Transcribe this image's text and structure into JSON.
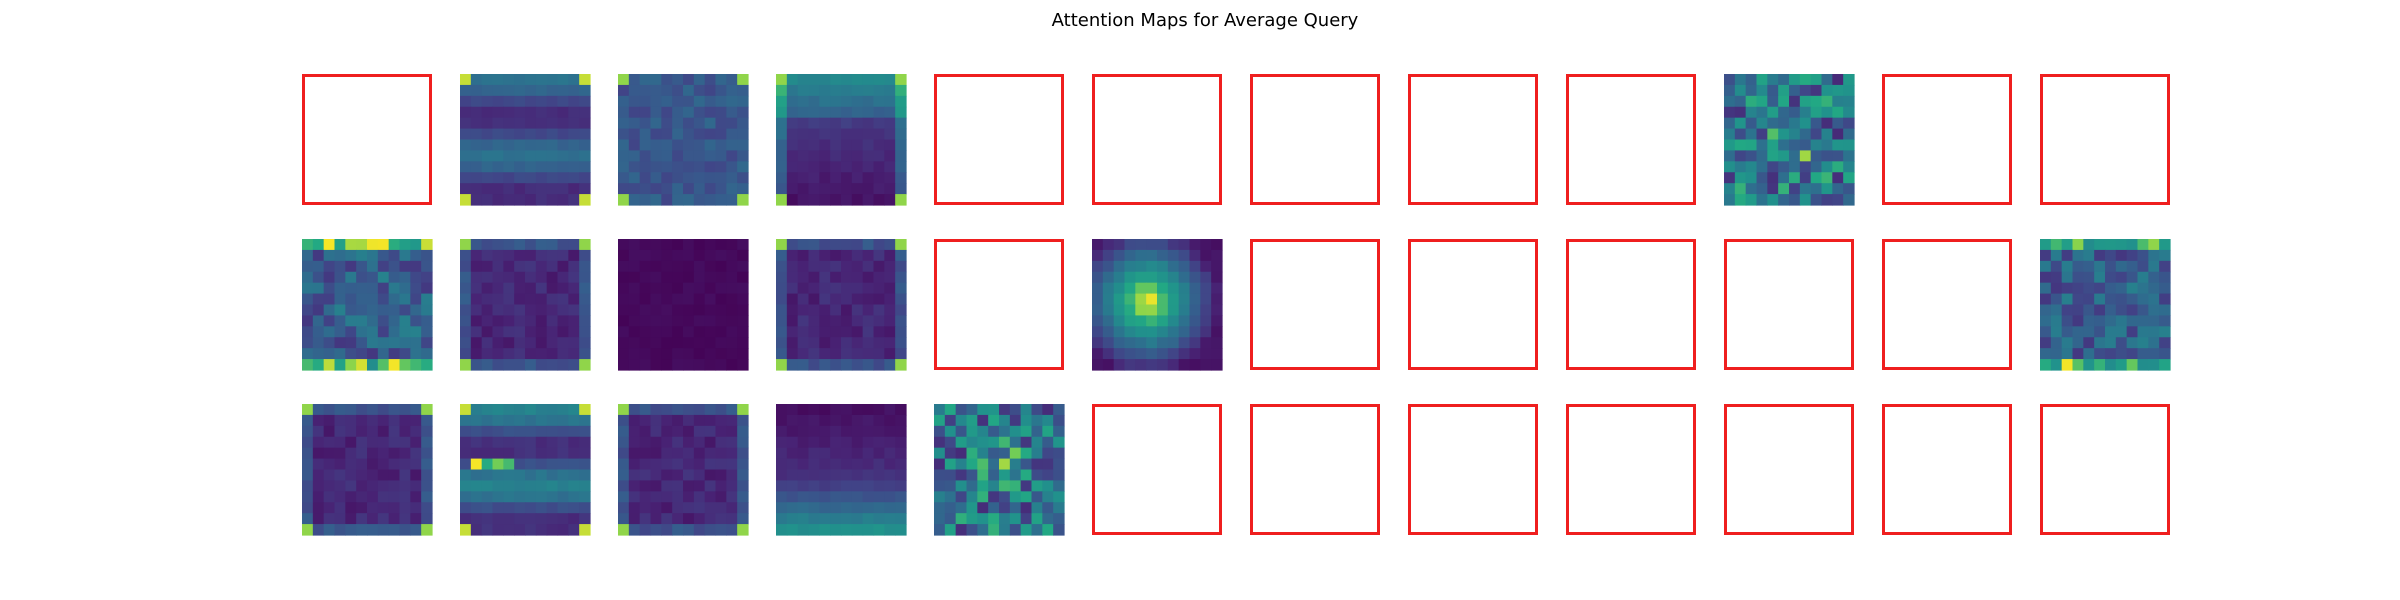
{
  "chart_data": {
    "type": "heatmap",
    "title": "Attention Maps for Average Query",
    "rows": 3,
    "cols": 12,
    "colormap": "viridis",
    "grid": false,
    "axes_visible": false,
    "map_resolution": "12x12",
    "empty_panel_style": {
      "fill": "#ffffff",
      "border_color": "#ef1f1f"
    },
    "panels": [
      {
        "row": 1,
        "col": 1,
        "status": "empty"
      },
      {
        "row": 1,
        "col": 2,
        "status": "map",
        "pattern": "horizontal-bands"
      },
      {
        "row": 1,
        "col": 3,
        "status": "map",
        "pattern": "uniform-mid"
      },
      {
        "row": 1,
        "col": 4,
        "status": "map",
        "pattern": "bright-top-dark-bottom"
      },
      {
        "row": 1,
        "col": 5,
        "status": "empty"
      },
      {
        "row": 1,
        "col": 6,
        "status": "empty"
      },
      {
        "row": 1,
        "col": 7,
        "status": "empty"
      },
      {
        "row": 1,
        "col": 8,
        "status": "empty"
      },
      {
        "row": 1,
        "col": 9,
        "status": "empty"
      },
      {
        "row": 1,
        "col": 10,
        "status": "map",
        "pattern": "noisy-bright"
      },
      {
        "row": 1,
        "col": 11,
        "status": "empty"
      },
      {
        "row": 1,
        "col": 12,
        "status": "empty"
      },
      {
        "row": 2,
        "col": 1,
        "status": "map",
        "pattern": "noisy-mid"
      },
      {
        "row": 2,
        "col": 2,
        "status": "map",
        "pattern": "dark-frame"
      },
      {
        "row": 2,
        "col": 3,
        "status": "map",
        "pattern": "very-dark"
      },
      {
        "row": 2,
        "col": 4,
        "status": "map",
        "pattern": "dark-frame"
      },
      {
        "row": 2,
        "col": 5,
        "status": "empty"
      },
      {
        "row": 2,
        "col": 6,
        "status": "map",
        "pattern": "central-peak"
      },
      {
        "row": 2,
        "col": 7,
        "status": "empty"
      },
      {
        "row": 2,
        "col": 8,
        "status": "empty"
      },
      {
        "row": 2,
        "col": 9,
        "status": "empty"
      },
      {
        "row": 2,
        "col": 10,
        "status": "empty"
      },
      {
        "row": 2,
        "col": 11,
        "status": "empty"
      },
      {
        "row": 2,
        "col": 12,
        "status": "map",
        "pattern": "noisy-mid"
      },
      {
        "row": 3,
        "col": 1,
        "status": "map",
        "pattern": "dark-frame"
      },
      {
        "row": 3,
        "col": 2,
        "status": "map",
        "pattern": "horizontal-bands-bright"
      },
      {
        "row": 3,
        "col": 3,
        "status": "map",
        "pattern": "dark-frame"
      },
      {
        "row": 3,
        "col": 4,
        "status": "map",
        "pattern": "dark-top-bright-bottom"
      },
      {
        "row": 3,
        "col": 5,
        "status": "map",
        "pattern": "noisy-bright"
      },
      {
        "row": 3,
        "col": 6,
        "status": "empty"
      },
      {
        "row": 3,
        "col": 7,
        "status": "empty"
      },
      {
        "row": 3,
        "col": 8,
        "status": "empty"
      },
      {
        "row": 3,
        "col": 9,
        "status": "empty"
      },
      {
        "row": 3,
        "col": 10,
        "status": "empty"
      },
      {
        "row": 3,
        "col": 11,
        "status": "empty"
      },
      {
        "row": 3,
        "col": 12,
        "status": "empty"
      }
    ]
  }
}
